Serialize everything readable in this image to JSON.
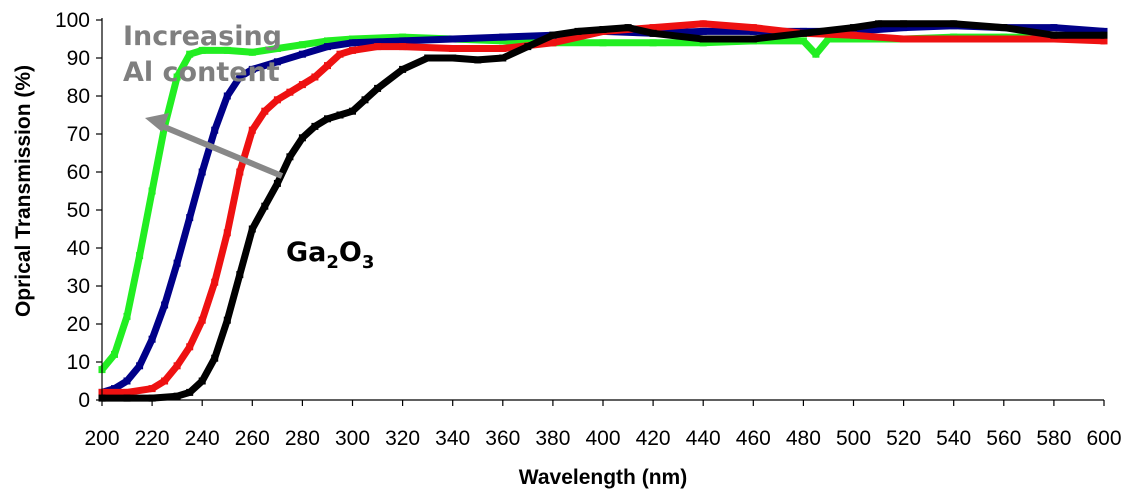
{
  "chart_data": {
    "type": "line",
    "title": "",
    "xlabel": "Wavelength (nm)",
    "ylabel": "Oprical Transmission (%)",
    "xlim": [
      200,
      600
    ],
    "ylim": [
      0,
      100
    ],
    "x_ticks": [
      200,
      220,
      240,
      260,
      280,
      300,
      320,
      340,
      360,
      380,
      400,
      420,
      440,
      460,
      480,
      500,
      520,
      540,
      560,
      580,
      600
    ],
    "y_ticks": [
      0,
      10,
      20,
      30,
      40,
      50,
      60,
      70,
      80,
      90,
      100
    ],
    "grid": false,
    "legend": "none",
    "annotations": {
      "increasing_line1": "Increasing",
      "increasing_line2": "Al content",
      "ga2o3_base": "Ga",
      "ga2o3_sub1": "2",
      "ga2o3_mid": "O",
      "ga2o3_sub2": "3"
    },
    "series": [
      {
        "color": "#22ee22",
        "points": [
          [
            200,
            8
          ],
          [
            205,
            12
          ],
          [
            210,
            22
          ],
          [
            215,
            38
          ],
          [
            220,
            55
          ],
          [
            225,
            72
          ],
          [
            230,
            85
          ],
          [
            235,
            91
          ],
          [
            240,
            92
          ],
          [
            250,
            92
          ],
          [
            260,
            91.5
          ],
          [
            270,
            92.5
          ],
          [
            280,
            93.5
          ],
          [
            290,
            94.5
          ],
          [
            300,
            95
          ],
          [
            320,
            95.5
          ],
          [
            340,
            95
          ],
          [
            360,
            94.5
          ],
          [
            380,
            94
          ],
          [
            400,
            94
          ],
          [
            420,
            94
          ],
          [
            440,
            94
          ],
          [
            460,
            94.5
          ],
          [
            480,
            94.5
          ],
          [
            485,
            91
          ],
          [
            490,
            95
          ],
          [
            500,
            95
          ],
          [
            520,
            95
          ],
          [
            540,
            95.5
          ],
          [
            560,
            95.5
          ],
          [
            580,
            95.5
          ],
          [
            600,
            95.5
          ]
        ]
      },
      {
        "color": "#000088",
        "points": [
          [
            200,
            2
          ],
          [
            205,
            3
          ],
          [
            210,
            5
          ],
          [
            215,
            9
          ],
          [
            220,
            16
          ],
          [
            225,
            25
          ],
          [
            230,
            36
          ],
          [
            235,
            48
          ],
          [
            240,
            60
          ],
          [
            245,
            71
          ],
          [
            250,
            80
          ],
          [
            255,
            85
          ],
          [
            260,
            87
          ],
          [
            270,
            89
          ],
          [
            280,
            91
          ],
          [
            290,
            93
          ],
          [
            300,
            94
          ],
          [
            320,
            94.5
          ],
          [
            340,
            95
          ],
          [
            360,
            95.5
          ],
          [
            380,
            96
          ],
          [
            400,
            97
          ],
          [
            420,
            96.5
          ],
          [
            440,
            97
          ],
          [
            460,
            97
          ],
          [
            480,
            97
          ],
          [
            500,
            97
          ],
          [
            520,
            98
          ],
          [
            540,
            98.5
          ],
          [
            560,
            98
          ],
          [
            580,
            98
          ],
          [
            600,
            97
          ]
        ]
      },
      {
        "color": "#ee1111",
        "points": [
          [
            200,
            2
          ],
          [
            210,
            2
          ],
          [
            220,
            3
          ],
          [
            225,
            5
          ],
          [
            230,
            9
          ],
          [
            235,
            14
          ],
          [
            240,
            21
          ],
          [
            245,
            31
          ],
          [
            250,
            44
          ],
          [
            255,
            60
          ],
          [
            260,
            71
          ],
          [
            265,
            76
          ],
          [
            270,
            79
          ],
          [
            275,
            81
          ],
          [
            280,
            83
          ],
          [
            285,
            85
          ],
          [
            290,
            88
          ],
          [
            295,
            91
          ],
          [
            300,
            92
          ],
          [
            310,
            93
          ],
          [
            320,
            93
          ],
          [
            340,
            92.5
          ],
          [
            360,
            92.5
          ],
          [
            380,
            94
          ],
          [
            400,
            97
          ],
          [
            420,
            98
          ],
          [
            440,
            99
          ],
          [
            460,
            98
          ],
          [
            480,
            96.5
          ],
          [
            500,
            96
          ],
          [
            520,
            95
          ],
          [
            540,
            95
          ],
          [
            560,
            95
          ],
          [
            580,
            95
          ],
          [
            600,
            94.5
          ]
        ]
      },
      {
        "color": "#000000",
        "points": [
          [
            200,
            0.5
          ],
          [
            210,
            0.5
          ],
          [
            220,
            0.5
          ],
          [
            230,
            1
          ],
          [
            235,
            2
          ],
          [
            240,
            5
          ],
          [
            245,
            11
          ],
          [
            250,
            21
          ],
          [
            255,
            33
          ],
          [
            260,
            45
          ],
          [
            265,
            51
          ],
          [
            270,
            57
          ],
          [
            275,
            64
          ],
          [
            280,
            69
          ],
          [
            285,
            72
          ],
          [
            290,
            74
          ],
          [
            295,
            75
          ],
          [
            300,
            76
          ],
          [
            305,
            79
          ],
          [
            310,
            82
          ],
          [
            320,
            87
          ],
          [
            330,
            90
          ],
          [
            340,
            90
          ],
          [
            350,
            89.5
          ],
          [
            360,
            90
          ],
          [
            370,
            93
          ],
          [
            380,
            96
          ],
          [
            390,
            97
          ],
          [
            400,
            97.5
          ],
          [
            410,
            98
          ],
          [
            420,
            96.5
          ],
          [
            440,
            95
          ],
          [
            460,
            95
          ],
          [
            480,
            96.5
          ],
          [
            500,
            98
          ],
          [
            510,
            99
          ],
          [
            520,
            99
          ],
          [
            540,
            99
          ],
          [
            560,
            98
          ],
          [
            580,
            96
          ],
          [
            600,
            96
          ]
        ]
      }
    ]
  }
}
